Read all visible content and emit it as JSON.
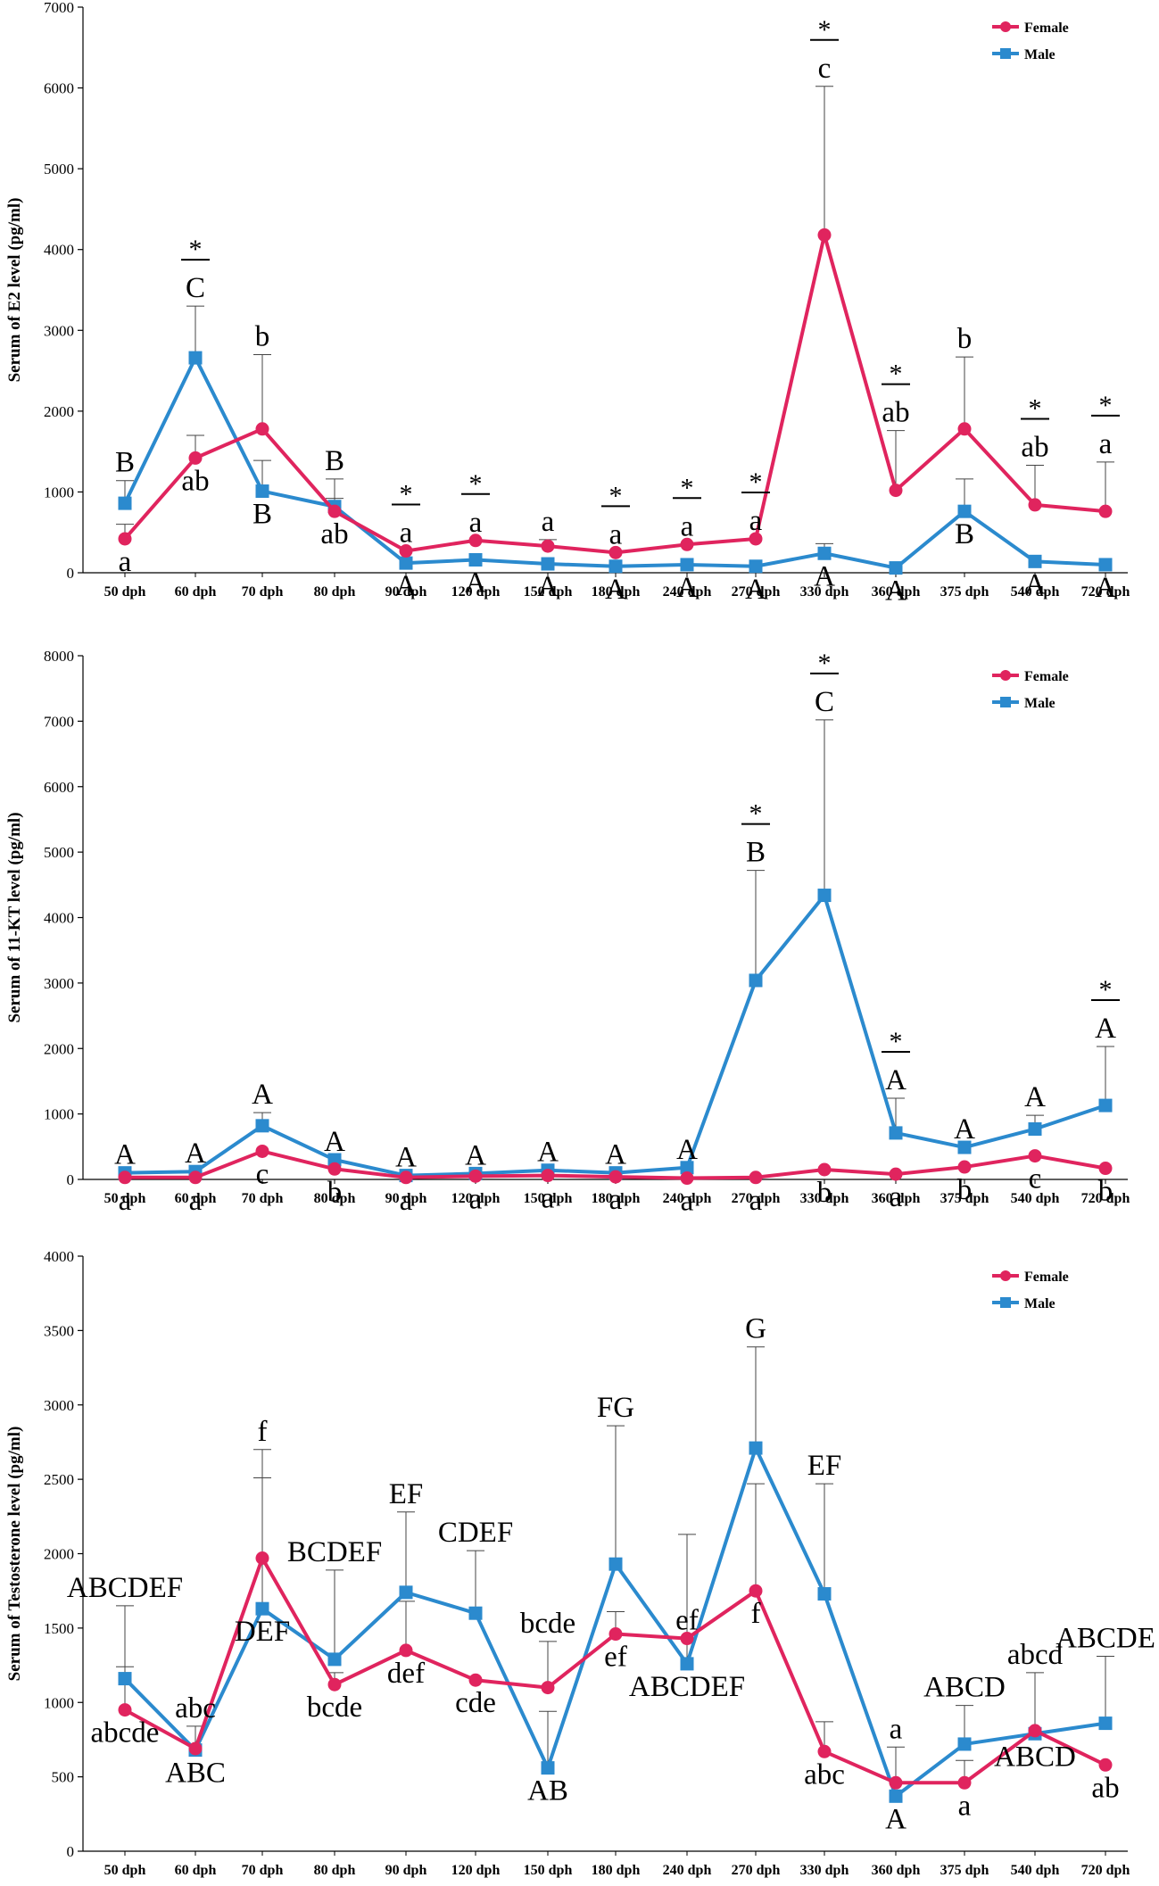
{
  "colors": {
    "female": "#e0245e",
    "male": "#2b8ace",
    "axis": "#000000"
  },
  "chart_data": [
    {
      "type": "line",
      "ylabel": "Serum of E2 level (pg/ml)",
      "ylim": [
        0,
        7000
      ],
      "yticks": [
        0,
        1000,
        2000,
        3000,
        4000,
        5000,
        6000,
        7000
      ],
      "legend_position": "top-right",
      "categories": [
        "50 dph",
        "60 dph",
        "70 dph",
        "80 dph",
        "90 dph",
        "120 dph",
        "150 dph",
        "180 dph",
        "240 dph",
        "270 dph",
        "330 dph",
        "360 dph",
        "375 dph",
        "540 dph",
        "720 dph"
      ],
      "series": [
        {
          "name": "Female",
          "values": [
            420,
            1420,
            1780,
            760,
            270,
            400,
            330,
            250,
            350,
            420,
            4180,
            1020,
            1780,
            840,
            760
          ],
          "errors": [
            180,
            280,
            920,
            160,
            0,
            0,
            80,
            0,
            0,
            0,
            1840,
            740,
            890,
            490,
            610
          ],
          "labels": [
            "a",
            "ab",
            "b",
            "ab",
            "a",
            "a",
            "a",
            "a",
            "a",
            "a",
            "c",
            "ab",
            "b",
            "ab",
            "a"
          ]
        },
        {
          "name": "Male",
          "values": [
            860,
            2660,
            1010,
            820,
            120,
            160,
            110,
            80,
            100,
            80,
            240,
            60,
            760,
            140,
            100
          ],
          "errors": [
            280,
            640,
            380,
            340,
            0,
            0,
            0,
            0,
            0,
            0,
            120,
            0,
            400,
            0,
            0
          ],
          "labels": [
            "B",
            "C",
            "B",
            "B",
            "A",
            "A",
            "A",
            "A",
            "A",
            "A",
            "A",
            "A",
            "B",
            "A",
            "A"
          ]
        }
      ],
      "significance": [
        "",
        "*",
        "",
        "",
        "*",
        "*",
        "",
        "*",
        "*",
        "*",
        "*",
        "*",
        "",
        "*",
        "*"
      ]
    },
    {
      "type": "line",
      "ylabel": "Serum of 11-KT level (pg/ml)",
      "ylim": [
        0,
        8000
      ],
      "yticks": [
        0,
        1000,
        2000,
        3000,
        4000,
        5000,
        6000,
        7000,
        8000
      ],
      "legend_position": "top-right",
      "categories": [
        "50 dph",
        "60 dph",
        "70 dph",
        "80 dph",
        "90 dph",
        "120 dph",
        "150 dph",
        "180 dph",
        "240 dph",
        "270 dph",
        "330 dph",
        "360 dph",
        "375 dph",
        "540 dph",
        "720 dph"
      ],
      "series": [
        {
          "name": "Female",
          "values": [
            30,
            30,
            430,
            160,
            30,
            50,
            60,
            40,
            20,
            30,
            150,
            80,
            190,
            360,
            170
          ],
          "errors": [
            0,
            0,
            0,
            0,
            0,
            0,
            0,
            0,
            0,
            0,
            0,
            0,
            0,
            0,
            0
          ],
          "labels": [
            "a",
            "a",
            "c",
            "b",
            "a",
            "a",
            "a",
            "a",
            "a",
            "a",
            "b",
            "a",
            "b",
            "c",
            "b"
          ]
        },
        {
          "name": "Male",
          "values": [
            100,
            120,
            820,
            300,
            60,
            90,
            140,
            100,
            180,
            3040,
            4340,
            710,
            490,
            770,
            1130
          ],
          "errors": [
            0,
            0,
            200,
            0,
            0,
            0,
            0,
            0,
            0,
            1680,
            2680,
            530,
            0,
            210,
            900
          ],
          "labels": [
            "A",
            "A",
            "A",
            "A",
            "A",
            "A",
            "A",
            "A",
            "A",
            "B",
            "C",
            "A",
            "A",
            "A",
            "A"
          ]
        }
      ],
      "significance": [
        "",
        "",
        "",
        "",
        "",
        "",
        "",
        "",
        "",
        "*",
        "*",
        "*",
        "",
        "",
        "*"
      ]
    },
    {
      "type": "line",
      "ylabel": "Serum of Testosterone level (pg/ml)",
      "ylim": [
        0,
        4000
      ],
      "yticks": [
        0,
        500,
        1000,
        1500,
        2000,
        2500,
        3000,
        3500,
        4000
      ],
      "legend_position": "top-right",
      "categories": [
        "50 dph",
        "60 dph",
        "70 dph",
        "80 dph",
        "90 dph",
        "120 dph",
        "150 dph",
        "180 dph",
        "240 dph",
        "270 dph",
        "330 dph",
        "360 dph",
        "375 dph",
        "540 dph",
        "720 dph"
      ],
      "series": [
        {
          "name": "Female",
          "values": [
            950,
            690,
            1970,
            1120,
            1350,
            1150,
            1100,
            1460,
            1430,
            1750,
            670,
            460,
            460,
            810,
            580
          ],
          "errors": [
            290,
            150,
            730,
            80,
            330,
            0,
            310,
            150,
            0,
            720,
            200,
            240,
            150,
            390,
            0
          ],
          "labels": [
            "abcde",
            "abc",
            "f",
            "bcde",
            "def",
            "cde",
            "bcde",
            "ef",
            "ef",
            "f",
            "abc",
            "a",
            "a",
            "abcd",
            "ab"
          ]
        },
        {
          "name": "Male",
          "values": [
            1160,
            680,
            1630,
            1290,
            1740,
            1600,
            560,
            1930,
            1260,
            2710,
            1730,
            370,
            720,
            790,
            860
          ],
          "errors": [
            490,
            0,
            880,
            600,
            540,
            420,
            380,
            930,
            870,
            680,
            740,
            0,
            260,
            0,
            450
          ],
          "labels": [
            "ABCDEF",
            "ABC",
            "DEF",
            "BCDEF",
            "EF",
            "CDEF",
            "AB",
            "FG",
            "ABCDEF",
            "G",
            "EF",
            "A",
            "ABCD",
            "ABCD",
            "ABCDE"
          ]
        }
      ],
      "significance": [
        "",
        "",
        "",
        "",
        "",
        "",
        "",
        "",
        "",
        "",
        "",
        "",
        "",
        "",
        ""
      ]
    }
  ]
}
